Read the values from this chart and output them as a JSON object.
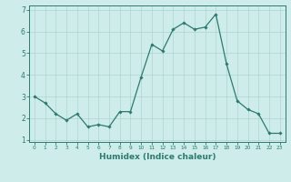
{
  "x": [
    0,
    1,
    2,
    3,
    4,
    5,
    6,
    7,
    8,
    9,
    10,
    11,
    12,
    13,
    14,
    15,
    16,
    17,
    18,
    19,
    20,
    21,
    22,
    23
  ],
  "y": [
    3.0,
    2.7,
    2.2,
    1.9,
    2.2,
    1.6,
    1.7,
    1.6,
    2.3,
    2.3,
    3.9,
    5.4,
    5.1,
    6.1,
    6.4,
    6.1,
    6.2,
    6.8,
    4.5,
    2.8,
    2.4,
    2.2,
    1.3,
    1.3
  ],
  "line_color": "#2d7a6e",
  "marker": "D",
  "markersize": 1.8,
  "linewidth": 0.9,
  "background_color": "#ceecea",
  "grid_color": "#aed4d0",
  "tick_color": "#2d7a6e",
  "xlabel": "Humidex (Indice chaleur)",
  "xlabel_fontsize": 6.5,
  "title": "",
  "xlim": [
    -0.5,
    23.5
  ],
  "ylim": [
    0.9,
    7.2
  ],
  "yticks": [
    1,
    2,
    3,
    4,
    5,
    6,
    7
  ],
  "xticks": [
    0,
    1,
    2,
    3,
    4,
    5,
    6,
    7,
    8,
    9,
    10,
    11,
    12,
    13,
    14,
    15,
    16,
    17,
    18,
    19,
    20,
    21,
    22,
    23
  ]
}
